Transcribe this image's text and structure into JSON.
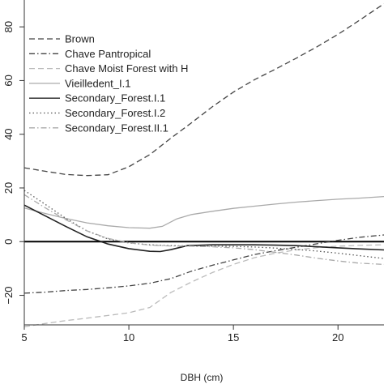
{
  "chart_data": {
    "type": "line",
    "title": "",
    "xlabel": "DBH (cm)",
    "ylabel": "",
    "xlim": [
      5,
      22.2
    ],
    "ylim": [
      -31,
      90
    ],
    "x_ticks": [
      5,
      10,
      15,
      20
    ],
    "y_ticks": [
      -20,
      0,
      20,
      40,
      60,
      80
    ],
    "reference_line": {
      "y": 0
    },
    "legend_position": "top-left",
    "grid": false,
    "series": [
      {
        "name": "Brown",
        "style": "dashed",
        "color": "#444444",
        "points": [
          [
            5.0,
            27.5
          ],
          [
            6.0,
            26.2
          ],
          [
            7.0,
            25.0
          ],
          [
            8.0,
            24.6
          ],
          [
            9.0,
            24.9
          ],
          [
            10.0,
            27.9
          ],
          [
            11.0,
            32.4
          ],
          [
            12.0,
            38.5
          ],
          [
            13.0,
            44.3
          ],
          [
            14.0,
            50.3
          ],
          [
            15.0,
            55.7
          ],
          [
            16.0,
            60.3
          ],
          [
            17.0,
            64.2
          ],
          [
            18.0,
            68.3
          ],
          [
            19.0,
            72.6
          ],
          [
            20.0,
            77.2
          ],
          [
            21.0,
            82.3
          ],
          [
            22.2,
            88.6
          ]
        ]
      },
      {
        "name": "Chave Pantropical",
        "style": "dashdot",
        "color": "#444444",
        "points": [
          [
            5.0,
            -19.2
          ],
          [
            6.0,
            -18.8
          ],
          [
            7.0,
            -18.2
          ],
          [
            8.0,
            -17.8
          ],
          [
            9.0,
            -17.2
          ],
          [
            10.0,
            -16.5
          ],
          [
            11.0,
            -15.5
          ],
          [
            12.0,
            -13.8
          ],
          [
            13.0,
            -11.0
          ],
          [
            14.0,
            -8.8
          ],
          [
            15.0,
            -6.8
          ],
          [
            16.0,
            -4.8
          ],
          [
            17.0,
            -3.4
          ],
          [
            18.0,
            -2.1
          ],
          [
            19.0,
            -0.8
          ],
          [
            20.0,
            0.5
          ],
          [
            21.0,
            1.6
          ],
          [
            22.2,
            2.5
          ]
        ]
      },
      {
        "name": "Chave Moist Forest with H",
        "style": "dashed",
        "color": "#bbbbbb",
        "points": [
          [
            5.0,
            -31.7
          ],
          [
            6.0,
            -30.5
          ],
          [
            7.0,
            -29.4
          ],
          [
            8.0,
            -28.5
          ],
          [
            9.0,
            -27.5
          ],
          [
            10.0,
            -26.5
          ],
          [
            11.0,
            -24.5
          ],
          [
            12.0,
            -19.0
          ],
          [
            13.0,
            -15.0
          ],
          [
            14.0,
            -11.5
          ],
          [
            15.0,
            -8.5
          ],
          [
            16.0,
            -6.0
          ],
          [
            17.0,
            -4.3
          ],
          [
            18.0,
            -3.1
          ],
          [
            19.0,
            -2.2
          ],
          [
            20.0,
            -1.7
          ],
          [
            21.0,
            -1.4
          ],
          [
            22.2,
            -1.2
          ]
        ]
      },
      {
        "name": "Vieilledent_I.1",
        "style": "solid",
        "color": "#aaaaaa",
        "points": [
          [
            5.0,
            12.5
          ],
          [
            6.0,
            10.5
          ],
          [
            7.0,
            8.6
          ],
          [
            8.0,
            7.0
          ],
          [
            9.0,
            5.9
          ],
          [
            10.0,
            5.2
          ],
          [
            11.0,
            5.0
          ],
          [
            11.6,
            5.7
          ],
          [
            12.3,
            8.5
          ],
          [
            13.0,
            10.1
          ],
          [
            14.0,
            11.3
          ],
          [
            15.0,
            12.4
          ],
          [
            16.0,
            13.2
          ],
          [
            17.0,
            14.0
          ],
          [
            18.0,
            14.7
          ],
          [
            19.0,
            15.3
          ],
          [
            20.0,
            15.8
          ],
          [
            21.0,
            16.2
          ],
          [
            22.2,
            16.8
          ]
        ]
      },
      {
        "name": "Secondary_Forest.I.1",
        "style": "solid",
        "color": "#222222",
        "points": [
          [
            5.0,
            13.6
          ],
          [
            6.0,
            9.6
          ],
          [
            7.0,
            5.6
          ],
          [
            8.0,
            1.8
          ],
          [
            9.0,
            -0.9
          ],
          [
            10.0,
            -2.6
          ],
          [
            11.0,
            -3.6
          ],
          [
            11.5,
            -3.7
          ],
          [
            12.0,
            -3.0
          ],
          [
            12.8,
            -1.5
          ],
          [
            14.0,
            -1.2
          ],
          [
            15.0,
            -1.2
          ],
          [
            16.0,
            -1.2
          ],
          [
            17.0,
            -1.3
          ],
          [
            18.0,
            -1.5
          ],
          [
            19.0,
            -1.9
          ],
          [
            20.0,
            -2.3
          ],
          [
            21.0,
            -2.7
          ],
          [
            22.2,
            -3.1
          ]
        ]
      },
      {
        "name": "Secondary_Forest.I.2",
        "style": "dotted",
        "color": "#555555",
        "points": [
          [
            5.0,
            19.1
          ],
          [
            6.0,
            13.9
          ],
          [
            7.0,
            8.6
          ],
          [
            8.0,
            4.0
          ],
          [
            9.0,
            1.0
          ],
          [
            10.0,
            -0.5
          ],
          [
            11.0,
            -1.2
          ],
          [
            12.0,
            -1.5
          ],
          [
            13.0,
            -1.6
          ],
          [
            14.0,
            -1.7
          ],
          [
            15.0,
            -1.8
          ],
          [
            16.0,
            -2.0
          ],
          [
            17.0,
            -2.4
          ],
          [
            18.0,
            -2.9
          ],
          [
            19.0,
            -3.5
          ],
          [
            20.0,
            -4.3
          ],
          [
            21.0,
            -5.2
          ],
          [
            22.2,
            -6.3
          ]
        ]
      },
      {
        "name": "Secondary_Forest.II.1",
        "style": "dashdot",
        "color": "#aaaaaa",
        "points": [
          [
            5.0,
            17.5
          ],
          [
            6.0,
            12.6
          ],
          [
            7.0,
            8.1
          ],
          [
            8.0,
            4.0
          ],
          [
            9.0,
            1.2
          ],
          [
            10.0,
            -0.4
          ],
          [
            11.0,
            -1.3
          ],
          [
            12.0,
            -1.6
          ],
          [
            13.0,
            -1.7
          ],
          [
            14.0,
            -1.9
          ],
          [
            15.0,
            -2.3
          ],
          [
            16.0,
            -3.0
          ],
          [
            17.0,
            -4.0
          ],
          [
            18.0,
            -5.0
          ],
          [
            19.0,
            -6.2
          ],
          [
            20.0,
            -7.2
          ],
          [
            21.0,
            -8.0
          ],
          [
            22.2,
            -8.5
          ]
        ]
      }
    ]
  }
}
